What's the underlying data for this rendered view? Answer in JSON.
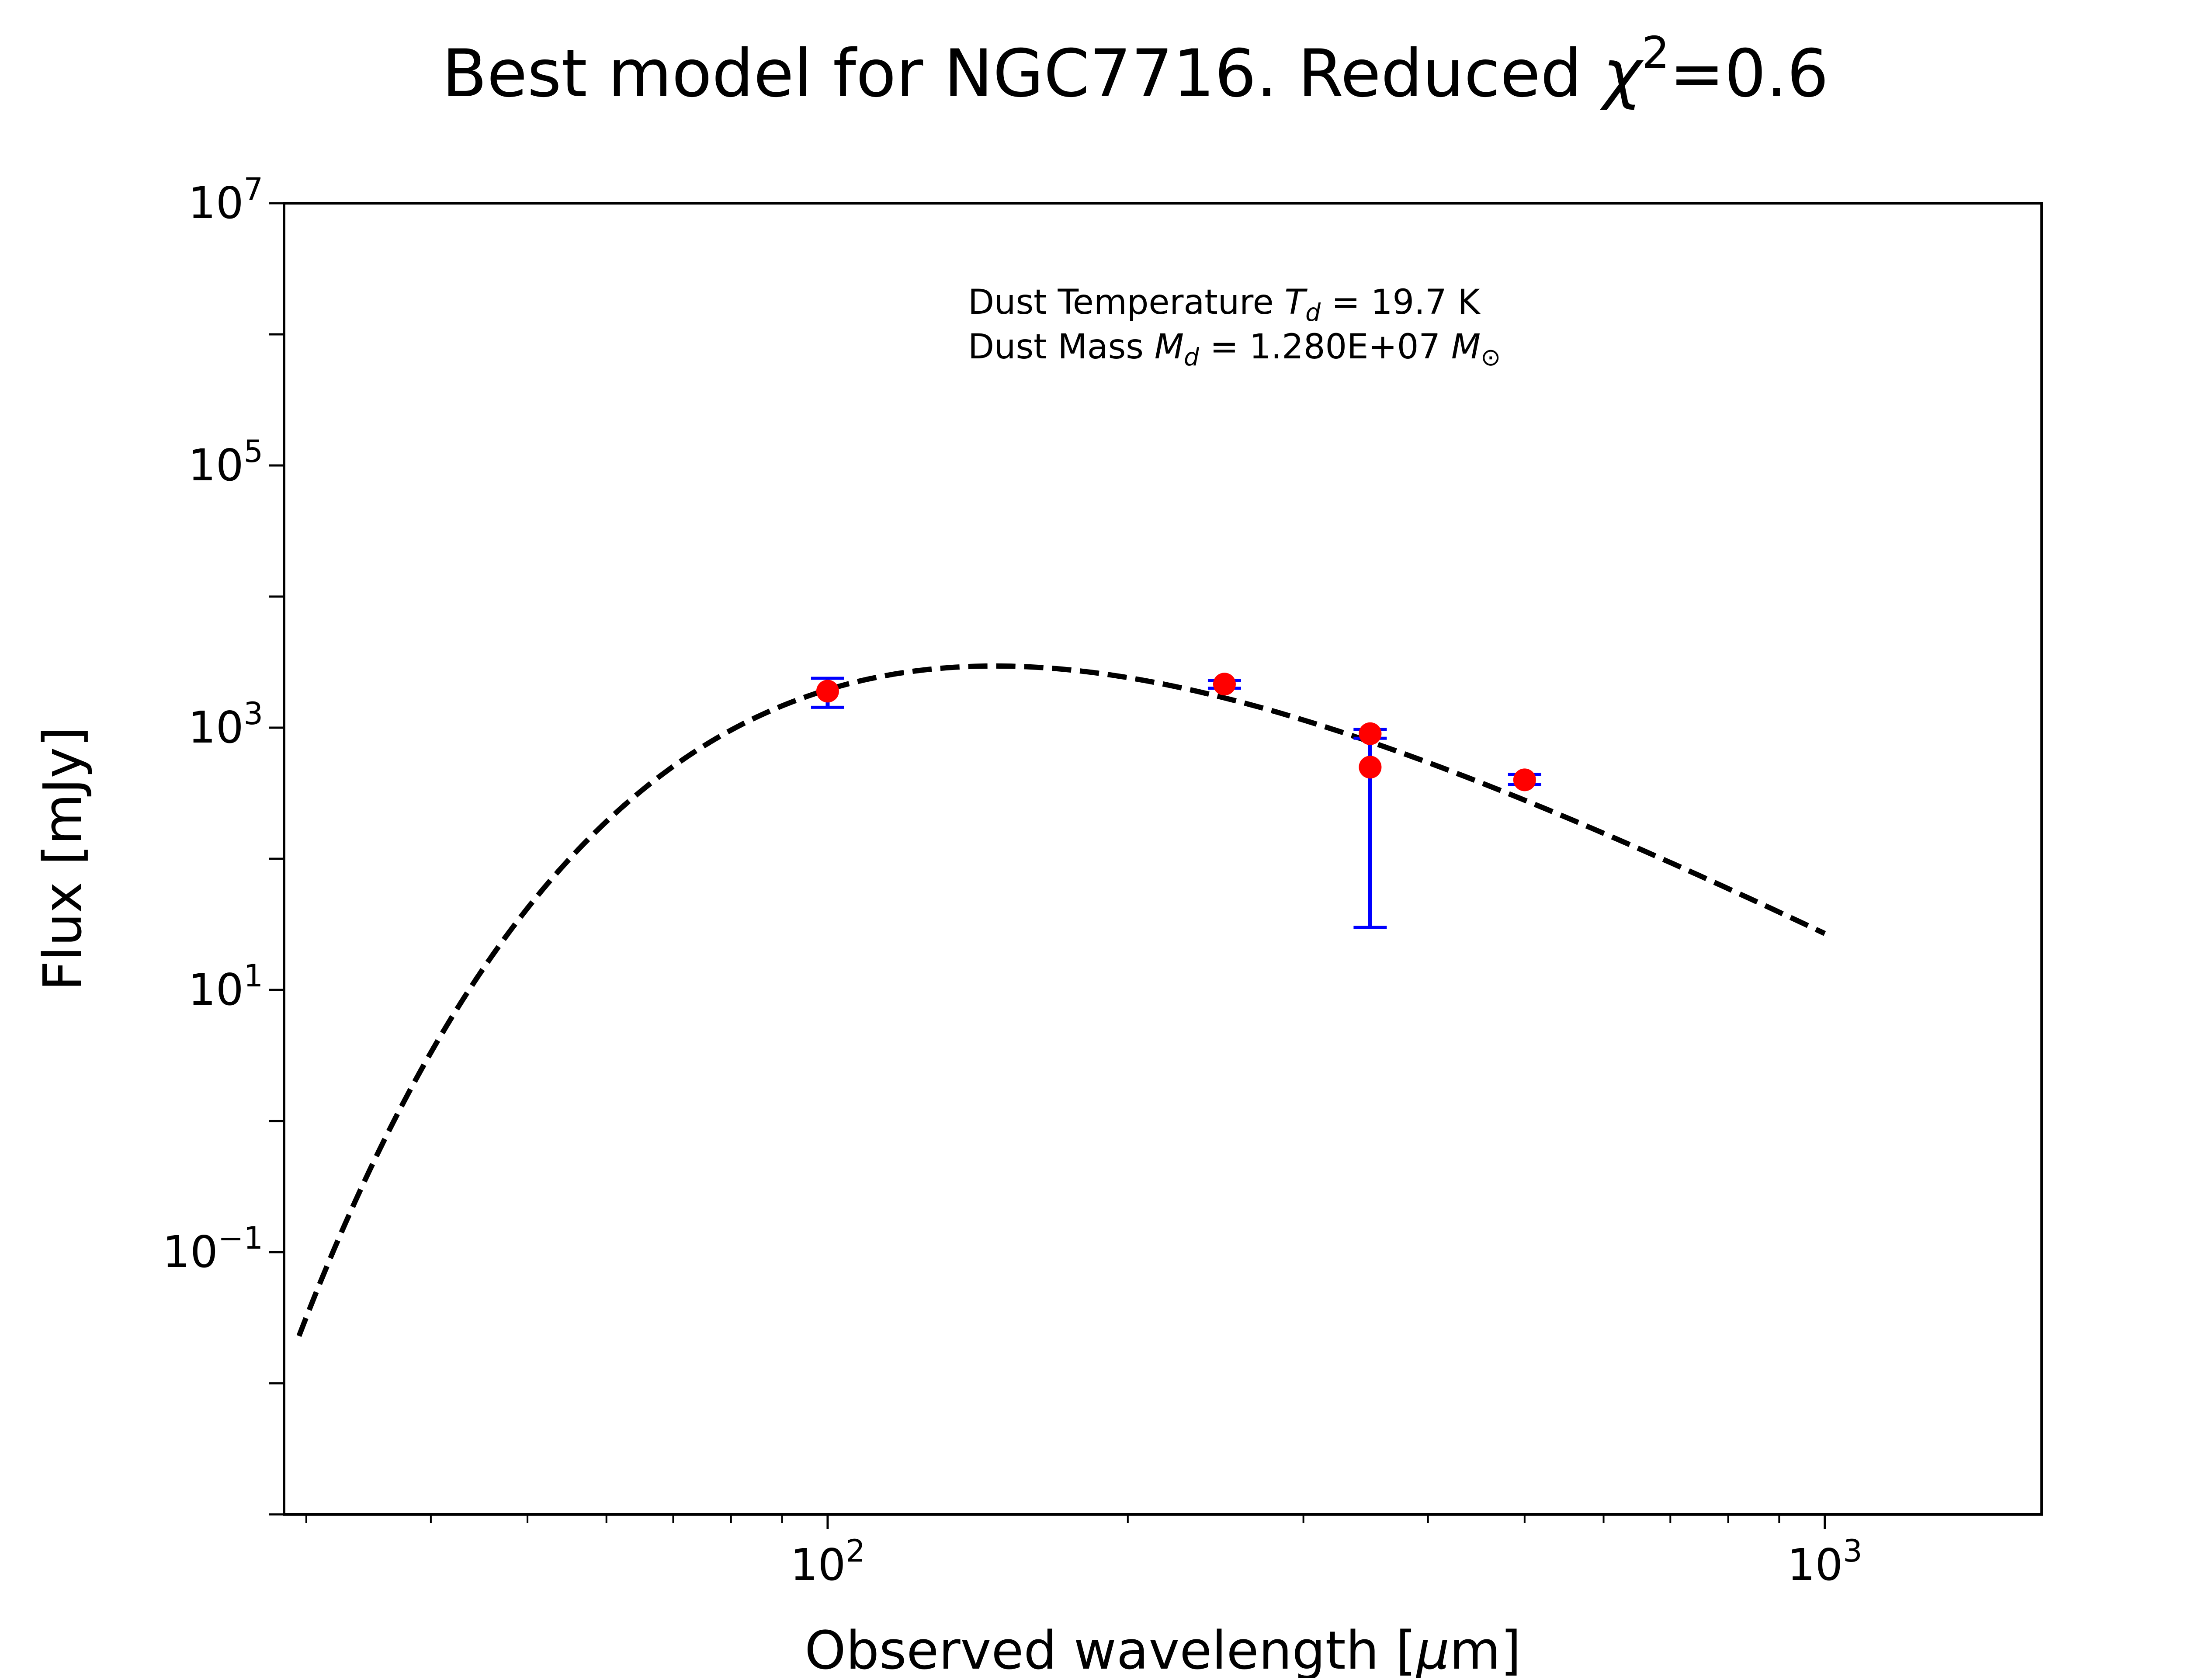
{
  "chart_data": {
    "type": "scatter",
    "title_prefix": "Best model for NGC7716. Reduced ",
    "title_chi": "χ",
    "title_chi_sup": "2",
    "title_value": "=0.6",
    "xlabel_prefix": "Observed wavelength [",
    "xlabel_mu": "μ",
    "xlabel_suffix": "m]",
    "ylabel": "Flux [mJy]",
    "xscale": "log",
    "yscale": "log",
    "xlim": [
      28.5,
      1650
    ],
    "ylim": [
      0.001,
      10000000
    ],
    "grid": false,
    "x_ticks": [
      {
        "value": 100,
        "base": "10",
        "exp": "2"
      },
      {
        "value": 1000,
        "base": "10",
        "exp": "3"
      }
    ],
    "x_minor_ticks": [
      30,
      40,
      50,
      60,
      70,
      80,
      90,
      200,
      300,
      400,
      500,
      600,
      700,
      800,
      900
    ],
    "y_ticks": [
      {
        "value": 0.1,
        "base": "10",
        "exp": "−1"
      },
      {
        "value": 10,
        "base": "10",
        "exp": "1"
      },
      {
        "value": 1000,
        "base": "10",
        "exp": "3"
      },
      {
        "value": 100000,
        "base": "10",
        "exp": "5"
      },
      {
        "value": 10000000,
        "base": "10",
        "exp": "7"
      }
    ],
    "annotation": {
      "line1_prefix": "Dust Temperature ",
      "line1_var": "T",
      "line1_sub": "d",
      "line1_suffix": " = 19.7 K",
      "line2_prefix": "Dust Mass ",
      "line2_var": "M",
      "line2_sub": "d",
      "line2_mid": " = 1.280E+07 ",
      "line2_var2": "M",
      "line2_sub2": "⊙"
    },
    "model": {
      "temperature_K": 19.7,
      "beta": 2.0,
      "norm_wavelength_um": 100,
      "norm_flux_mJy": 1950,
      "x_range": [
        29.5,
        1000
      ],
      "style": "dashed",
      "color": "#000000"
    },
    "data_points": [
      {
        "x": 100,
        "y": 1900,
        "yerr_low": 1430,
        "yerr_high": 2380
      },
      {
        "x": 250,
        "y": 2150,
        "yerr_low": 2000,
        "yerr_high": 2300
      },
      {
        "x": 350,
        "y": 900,
        "yerr_low": 830,
        "yerr_high": 970
      },
      {
        "x": 350,
        "y": 500,
        "yerr_low": 30,
        "yerr_high": 970
      },
      {
        "x": 500,
        "y": 400,
        "yerr_low": 370,
        "yerr_high": 440
      }
    ],
    "point_color": "#ff0000",
    "errorbar_color": "#0000ff"
  }
}
